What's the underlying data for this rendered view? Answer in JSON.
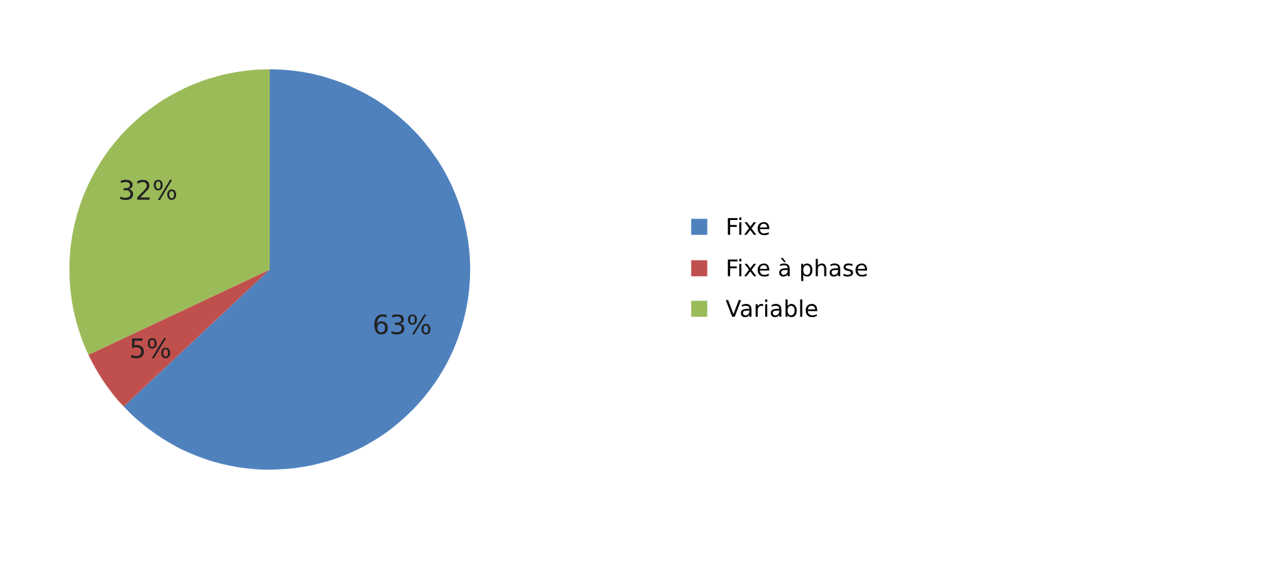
{
  "chart_data": {
    "type": "pie",
    "categories": [
      "Fixe",
      "Fixe à phase",
      "Variable"
    ],
    "values": [
      63,
      5,
      32
    ],
    "colors": [
      "#4f81bd",
      "#c0504d",
      "#9bbb59"
    ],
    "value_labels": [
      "63%",
      "5%",
      "32%"
    ],
    "legend": "right"
  }
}
